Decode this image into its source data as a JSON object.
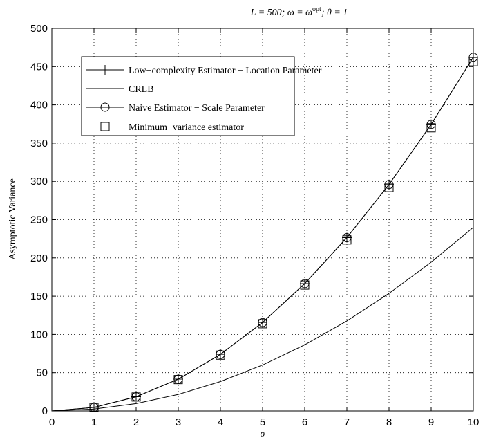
{
  "chart_data": {
    "type": "line",
    "title": "L = 500; ω = ω^opt; θ = 1",
    "title_parts": {
      "main": "L = 500; ω = ω",
      "sup": "opt",
      "tail": "; θ = 1"
    },
    "xlabel": "σ",
    "ylabel": "Asymptotic Variance",
    "xlim": [
      0,
      10
    ],
    "ylim": [
      0,
      500
    ],
    "xticks": [
      0,
      1,
      2,
      3,
      4,
      5,
      6,
      7,
      8,
      9,
      10
    ],
    "yticks": [
      0,
      50,
      100,
      150,
      200,
      250,
      300,
      350,
      400,
      450,
      500
    ],
    "grid": true,
    "legend_position": "top-left",
    "series": [
      {
        "name": "Low−complexity Estimator − Location Parameter",
        "marker": "plus",
        "x": [
          0,
          1,
          2,
          3,
          4,
          5,
          6,
          7,
          8,
          9,
          10
        ],
        "y": [
          0,
          4.6,
          18.5,
          41.6,
          74,
          115.6,
          166.4,
          226.5,
          295.9,
          374.5,
          462.3
        ]
      },
      {
        "name": "CRLB",
        "marker": "none",
        "x": [
          0,
          1,
          2,
          3,
          4,
          5,
          6,
          7,
          8,
          9,
          10
        ],
        "y": [
          0,
          2.4,
          9.6,
          21.6,
          38.4,
          60,
          86.4,
          117.6,
          153.6,
          194.4,
          240
        ]
      },
      {
        "name": "Naive Estimator − Scale Parameter",
        "marker": "circle",
        "x": [
          0,
          1,
          2,
          3,
          4,
          5,
          6,
          7,
          8,
          9,
          10
        ],
        "y": [
          0,
          4.6,
          18.5,
          41.6,
          74,
          115.6,
          166.4,
          226.5,
          295.9,
          374.5,
          462.3
        ]
      },
      {
        "name": "Minimum−variance estimator",
        "marker": "square",
        "x": [
          1,
          2,
          3,
          4,
          5,
          6,
          7,
          8,
          9,
          10
        ],
        "y": [
          4.6,
          18.2,
          41,
          73,
          114,
          164.5,
          223.5,
          292,
          370,
          456.5
        ]
      }
    ]
  }
}
